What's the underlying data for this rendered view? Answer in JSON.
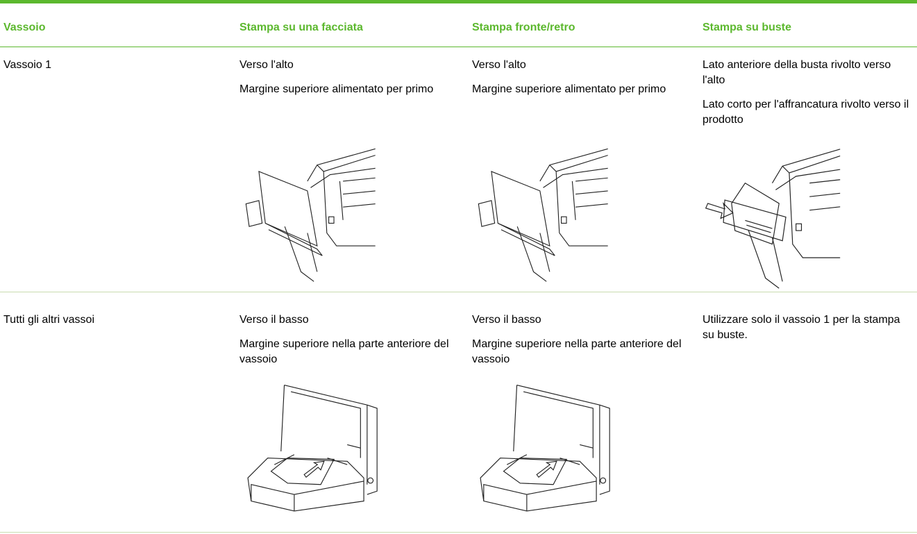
{
  "table": {
    "header": [
      "Vassoio",
      "Stampa su una facciata",
      "Stampa fronte/retro",
      "Stampa su buste"
    ],
    "rows": [
      [
        [
          "Vassoio 1"
        ],
        [
          "Verso l'alto",
          "Margine superiore alimentato per primo"
        ],
        [
          "Verso l'alto",
          "Margine superiore alimentato per primo"
        ],
        [
          "Lato anteriore della busta rivolto verso l'alto",
          "Lato corto per l'affrancatura rivolto verso il prodotto"
        ]
      ],
      [
        [
          "Tutti gli altri vassoi"
        ],
        [
          "Verso il basso",
          "Margine superiore nella parte anteriore del vassoio"
        ],
        [
          "Verso il basso",
          "Margine superiore nella parte anteriore del vassoio"
        ],
        [
          "Utilizzare solo il vassoio 1 per la stampa su buste."
        ]
      ]
    ]
  }
}
